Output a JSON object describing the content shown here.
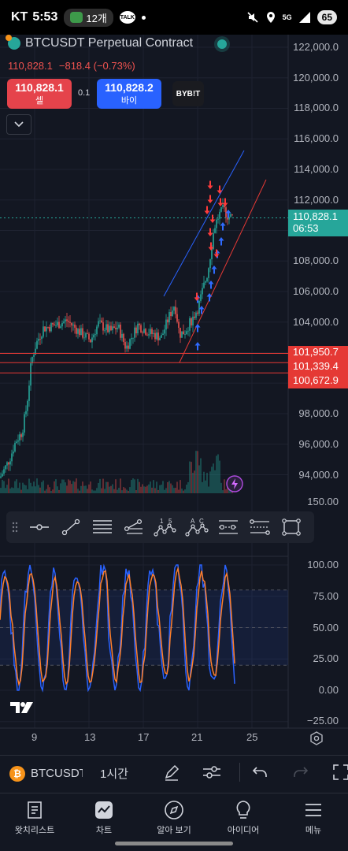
{
  "status_bar": {
    "carrier": "KT",
    "time": "5:53",
    "notif_count": "12개",
    "kakao": "TALK",
    "network": "5G",
    "battery": "65"
  },
  "symbol": {
    "title": "BTCUSDT Perpetual Contract",
    "last_price": "110,828.1",
    "change": "−818.4 (−0.73%)",
    "sell_price": "110,828.1",
    "sell_label": "셀",
    "buy_price": "110,828.2",
    "buy_label": "바이",
    "spread": "0.1",
    "exchange": "BYB!T"
  },
  "price_axis": [
    {
      "label": "122,000.0",
      "value": 122000
    },
    {
      "label": "120,000.0",
      "value": 120000
    },
    {
      "label": "118,000.0",
      "value": 118000
    },
    {
      "label": "116,000.0",
      "value": 116000
    },
    {
      "label": "114,000.0",
      "value": 114000
    },
    {
      "label": "112,000.0",
      "value": 112000
    },
    {
      "label": "108,000.0",
      "value": 108000
    },
    {
      "label": "106,000.0",
      "value": 106000
    },
    {
      "label": "104,000.0",
      "value": 104000
    },
    {
      "label": "98,000.0",
      "value": 98000
    },
    {
      "label": "96,000.0",
      "value": 96000
    },
    {
      "label": "94,000.0",
      "value": 94000
    }
  ],
  "current_price_tag": {
    "price": "110,828.1",
    "countdown": "06:53",
    "color": "#26a69a"
  },
  "level_tags": [
    {
      "price": "101,950.7",
      "value": 101950.7
    },
    {
      "price": "101,339.4",
      "value": 101339.4
    },
    {
      "price": "100,672.9",
      "value": 100672.9
    }
  ],
  "level_color": "#e53935",
  "volume_axis_label": "150.00",
  "osc_axis": [
    {
      "label": "100.00",
      "value": 100
    },
    {
      "label": "75.00",
      "value": 75
    },
    {
      "label": "50.00",
      "value": 50
    },
    {
      "label": "25.00",
      "value": 25
    },
    {
      "label": "0.00",
      "value": 0
    },
    {
      "label": "−25.00",
      "value": -25
    }
  ],
  "time_axis": [
    "9",
    "13",
    "17",
    "21",
    "25"
  ],
  "drawing_tools": [
    "grip-handle-icon",
    "horizontal-ray-icon",
    "trend-line-icon",
    "fib-retracement-icon",
    "pitchfork-icon",
    "elliott-wave-icon",
    "abcd-pattern-icon",
    "regression-channel-icon",
    "parallel-channel-icon",
    "rectangle-icon"
  ],
  "symbol_bar": {
    "coin_glyph": "₿",
    "symbol": "BTCUSDT",
    "interval": "1시간"
  },
  "bottom_nav": [
    {
      "label": "왓치리스트",
      "icon": "watchlist-icon"
    },
    {
      "label": "차트",
      "icon": "chart-icon"
    },
    {
      "label": "알아 보기",
      "icon": "explore-icon"
    },
    {
      "label": "아이디어",
      "icon": "ideas-icon"
    },
    {
      "label": "메뉴",
      "icon": "menu-icon"
    }
  ],
  "colors": {
    "background": "#131722",
    "up": "#26a69a",
    "down": "#ef5350",
    "stoch_k": "#2962ff",
    "stoch_d": "#ff7f2a",
    "arrow_buy": "#2f6bff",
    "arrow_sell": "#ff3b3b"
  }
}
